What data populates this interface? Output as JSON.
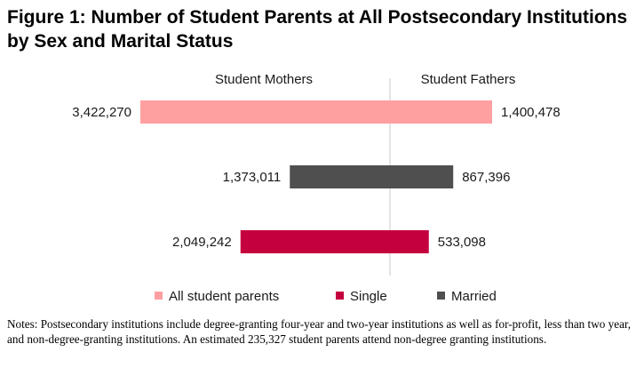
{
  "chart_data": {
    "type": "bar",
    "title": "Figure 1: Number of Student Parents at All Postsecondary Institutions by Sex and Marital Status",
    "orientation": "horizontal-butterfly",
    "side_labels": {
      "left": "Student Mothers",
      "right": "Student Fathers"
    },
    "categories": [
      "All student parents",
      "Single",
      "Married"
    ],
    "series": [
      {
        "name": "All student parents",
        "color": "#FFA0A0",
        "mothers": 3422270,
        "fathers": 1400478,
        "mothers_label": "3,422,270",
        "fathers_label": "1,400,478"
      },
      {
        "name": "Married",
        "color": "#4F4F4F",
        "mothers": 1373011,
        "fathers": 867396,
        "mothers_label": "1,373,011",
        "fathers_label": "867,396"
      },
      {
        "name": "Single",
        "color": "#C5003F",
        "mothers": 2049242,
        "fathers": 533098,
        "mothers_label": "2,049,242",
        "fathers_label": "533,098"
      }
    ],
    "legend": {
      "placement": "bottom",
      "items": [
        {
          "label": "All student parents",
          "color": "#FFA0A0"
        },
        {
          "label": "Single",
          "color": "#C5003F"
        },
        {
          "label": "Married",
          "color": "#4F4F4F"
        }
      ]
    },
    "notes": "Notes: Postsecondary institutions include degree-granting four-year and two-year institutions as well as for-profit, less than two year, and non-degree-granting institutions. An estimated 235,327 student parents attend non-degree granting institutions."
  }
}
